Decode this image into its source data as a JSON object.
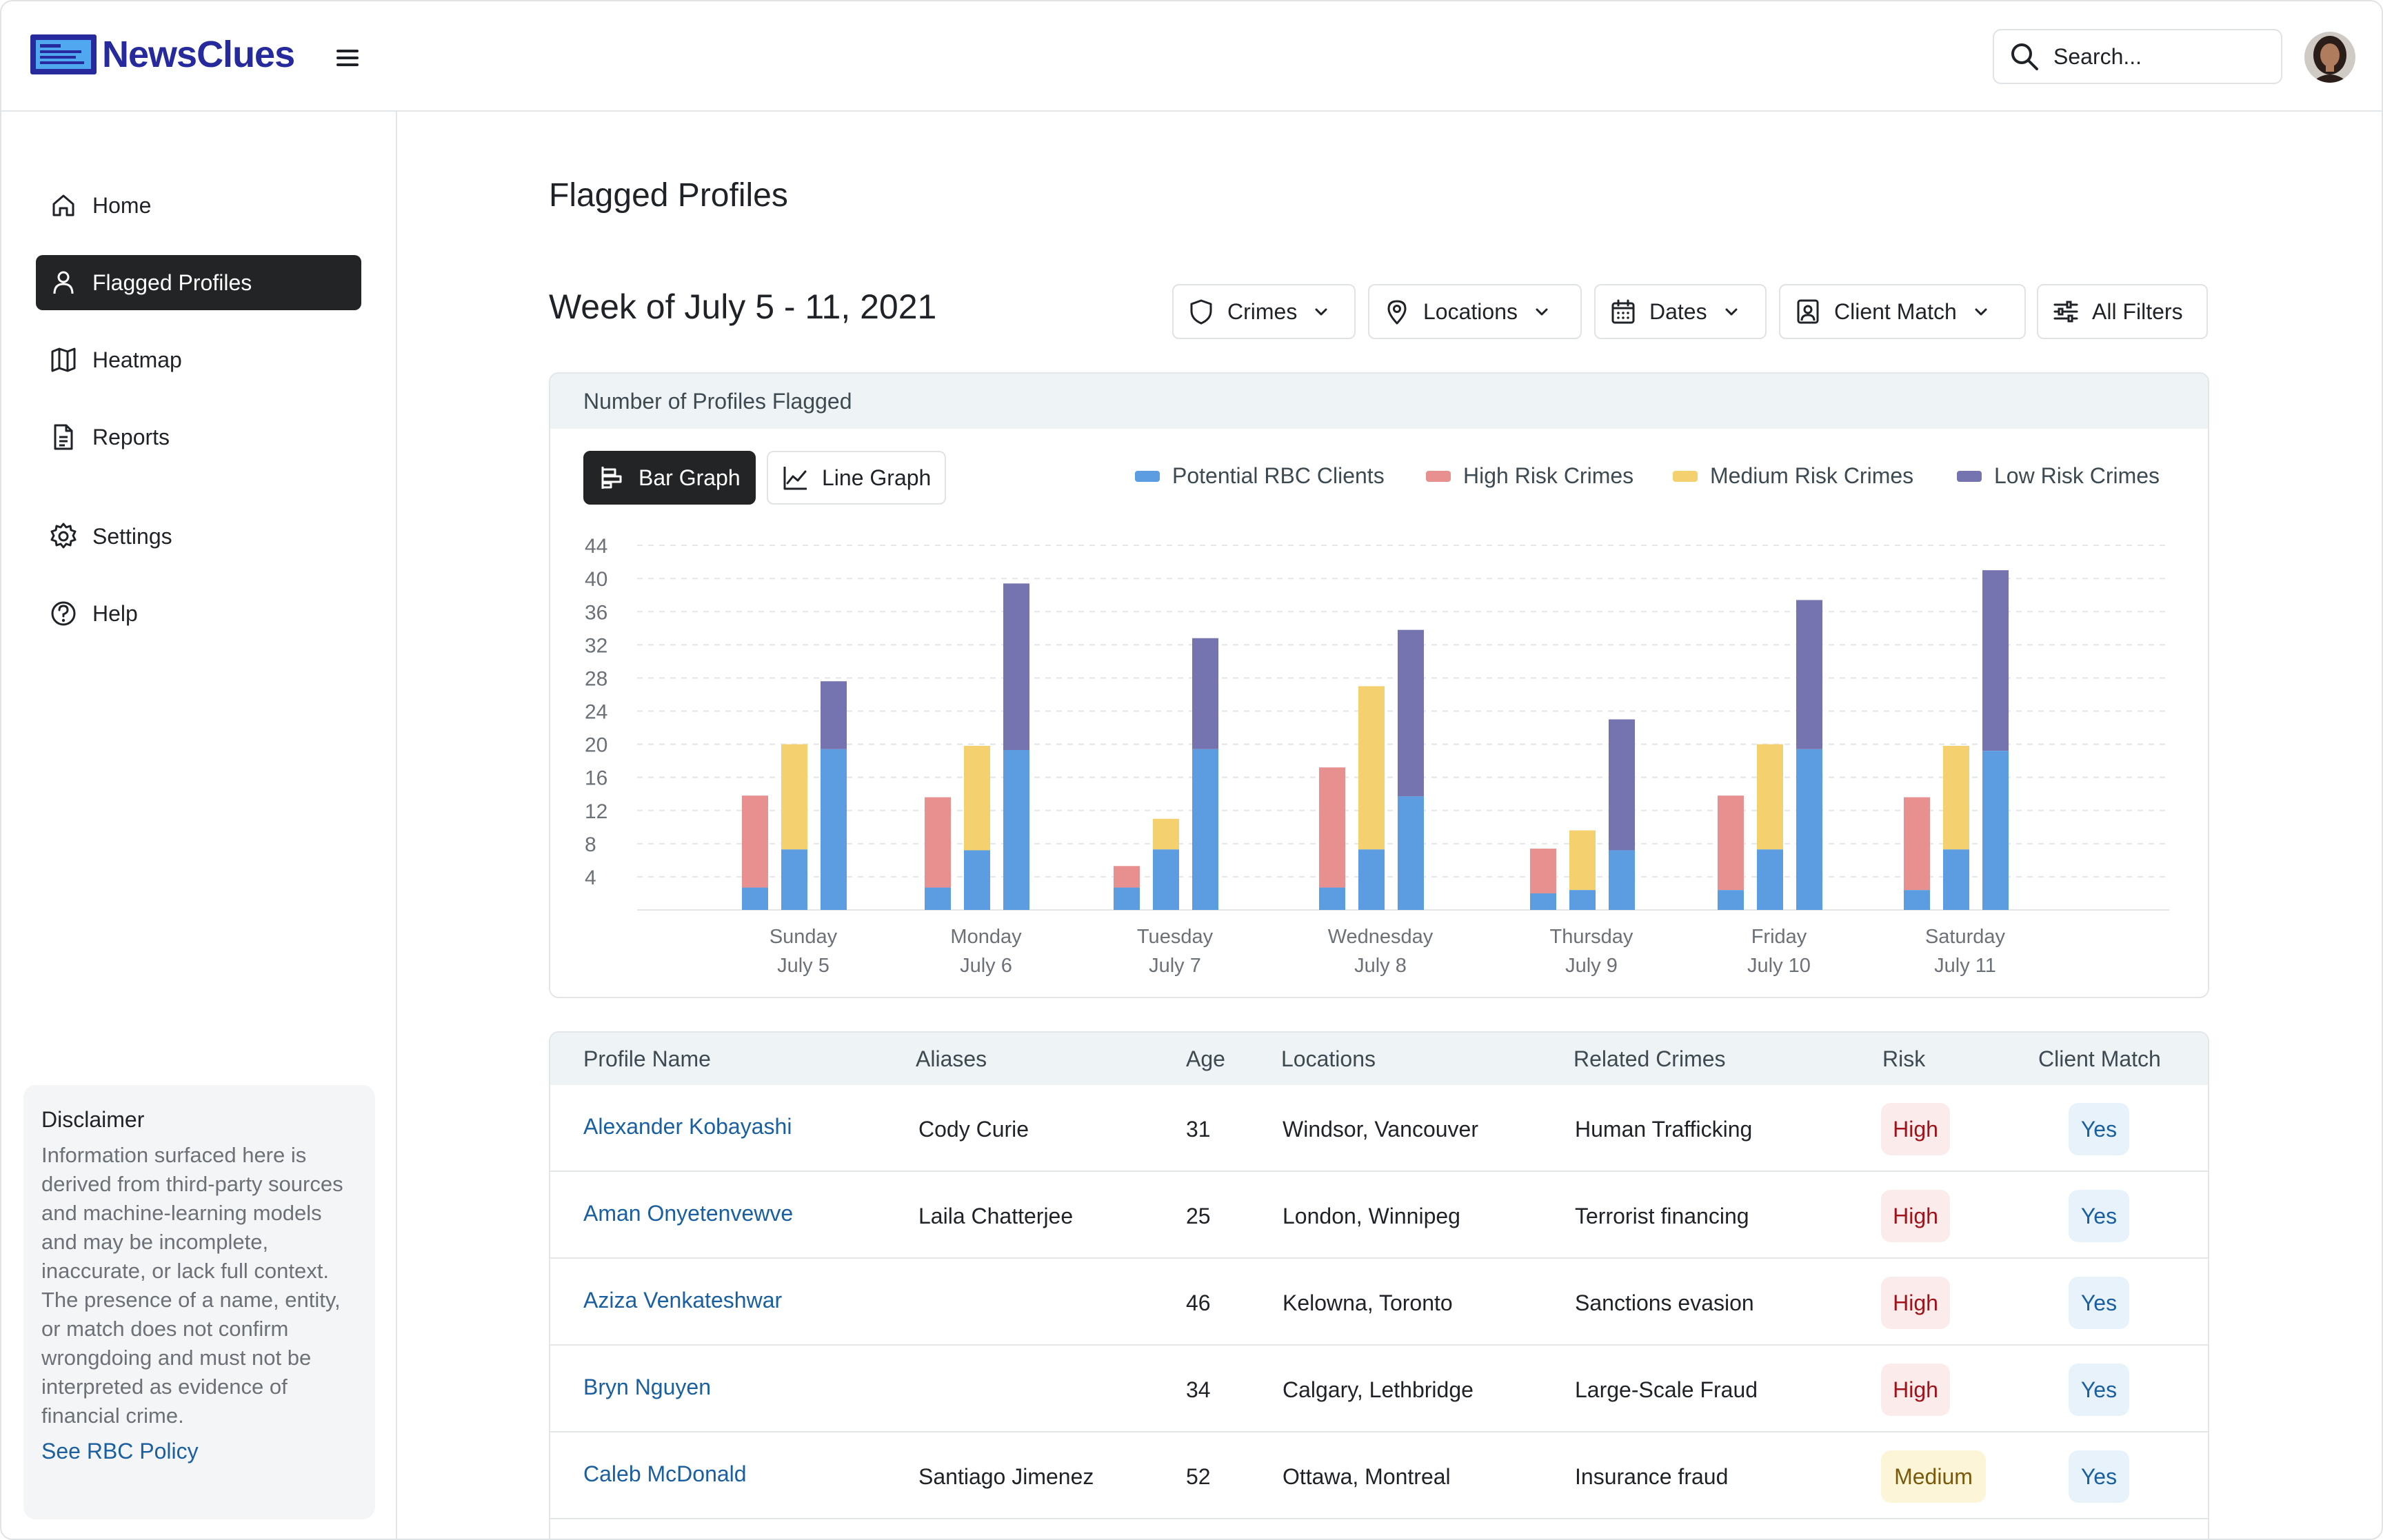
{
  "app": {
    "logo_text": "NewsClues",
    "search_placeholder": "Search...",
    "colors": {
      "brand": "#262a9c",
      "accent": "#1a5fa0",
      "active_nav": "#222426"
    }
  },
  "sidebar": {
    "items": [
      {
        "label": "Home",
        "icon": "home-icon",
        "active": false
      },
      {
        "label": "Flagged Profiles",
        "icon": "user-icon",
        "active": true
      },
      {
        "label": "Heatmap",
        "icon": "map-icon",
        "active": false
      },
      {
        "label": "Reports",
        "icon": "document-icon",
        "active": false
      },
      {
        "label": "Settings",
        "icon": "gear-icon",
        "active": false
      },
      {
        "label": "Help",
        "icon": "help-icon",
        "active": false
      }
    ],
    "disclaimer": {
      "title": "Disclaimer",
      "text": "Information surfaced here is derived from third-party sources and machine-learning models and may be incomplete, inaccurate, or lack full context. The presence of a name, entity, or match does not confirm wrongdoing and must not be interpreted as evidence of financial crime.",
      "link": "See RBC Policy"
    }
  },
  "main": {
    "page_title": "Flagged Profiles",
    "week_title": "Week of July 5 - 11, 2021",
    "filters": [
      {
        "label": "Crimes",
        "icon": "shield-icon"
      },
      {
        "label": "Locations",
        "icon": "pin-icon"
      },
      {
        "label": "Dates",
        "icon": "calendar-icon"
      },
      {
        "label": "Client Match",
        "icon": "id-card-icon"
      },
      {
        "label": "All Filters",
        "icon": "sliders-icon"
      }
    ]
  },
  "chart_panel": {
    "header": "Number of Profiles Flagged",
    "toggles": {
      "bar": "Bar Graph",
      "line": "Line Graph",
      "active": "bar"
    }
  },
  "chart_data": {
    "type": "bar",
    "stacked": true,
    "categories": [
      "Sunday",
      "Monday",
      "Tuesday",
      "Wednesday",
      "Thursday",
      "Friday",
      "Saturday"
    ],
    "category_dates": [
      "July 5",
      "July 6",
      "July 7",
      "July 8",
      "July 9",
      "July 10",
      "July 11"
    ],
    "yticks": [
      4,
      8,
      12,
      16,
      20,
      24,
      28,
      32,
      36,
      40,
      44
    ],
    "ylim": [
      0,
      44
    ],
    "grid": true,
    "legend_position": "top-right",
    "legend": [
      {
        "name": "Potential RBC Clients",
        "color": "#5b9de0"
      },
      {
        "name": "High Risk Crimes",
        "color": "#e89090"
      },
      {
        "name": "Medium Risk Crimes",
        "color": "#f5d06e"
      },
      {
        "name": "Low Risk Crimes",
        "color": "#7674b0"
      }
    ],
    "bars": [
      {
        "series": "High Risk Crimes",
        "client_share": [
          2.7,
          2.7,
          2.7,
          2.7,
          2.0,
          2.4,
          2.4
        ],
        "total": [
          13.8,
          13.6,
          5.3,
          17.2,
          7.4,
          13.8,
          13.6
        ]
      },
      {
        "series": "Medium Risk Crimes",
        "client_share": [
          7.3,
          7.2,
          7.3,
          7.3,
          2.4,
          7.3,
          7.3
        ],
        "total": [
          20.0,
          19.8,
          11.0,
          27.0,
          9.6,
          20.0,
          19.8
        ]
      },
      {
        "series": "Low Risk Crimes",
        "client_share": [
          19.4,
          19.3,
          19.4,
          13.7,
          7.2,
          19.4,
          19.2
        ],
        "total": [
          27.6,
          39.4,
          32.8,
          33.8,
          23.0,
          37.4,
          41.0
        ]
      }
    ]
  },
  "table": {
    "columns": [
      "Profile Name",
      "Aliases",
      "Age",
      "Locations",
      "Related Crimes",
      "Risk",
      "Client Match"
    ],
    "rows": [
      {
        "name": "Alexander Kobayashi",
        "alias": "Cody Curie",
        "age": "31",
        "locations": "Windsor, Vancouver",
        "crimes": "Human Trafficking",
        "risk": "High",
        "client_match": "Yes"
      },
      {
        "name": "Aman Onyetenvewve",
        "alias": "Laila Chatterjee",
        "age": "25",
        "locations": "London, Winnipeg",
        "crimes": "Terrorist financing",
        "risk": "High",
        "client_match": "Yes"
      },
      {
        "name": "Aziza Venkateshwar",
        "alias": "",
        "age": "46",
        "locations": "Kelowna, Toronto",
        "crimes": "Sanctions evasion",
        "risk": "High",
        "client_match": "Yes"
      },
      {
        "name": "Bryn Nguyen",
        "alias": "",
        "age": "34",
        "locations": "Calgary, Lethbridge",
        "crimes": "Large-Scale Fraud",
        "risk": "High",
        "client_match": "Yes"
      },
      {
        "name": "Caleb McDonald",
        "alias": "Santiago Jimenez",
        "age": "52",
        "locations": "Ottawa, Montreal",
        "crimes": "Insurance fraud",
        "risk": "Medium",
        "client_match": "Yes"
      }
    ]
  }
}
